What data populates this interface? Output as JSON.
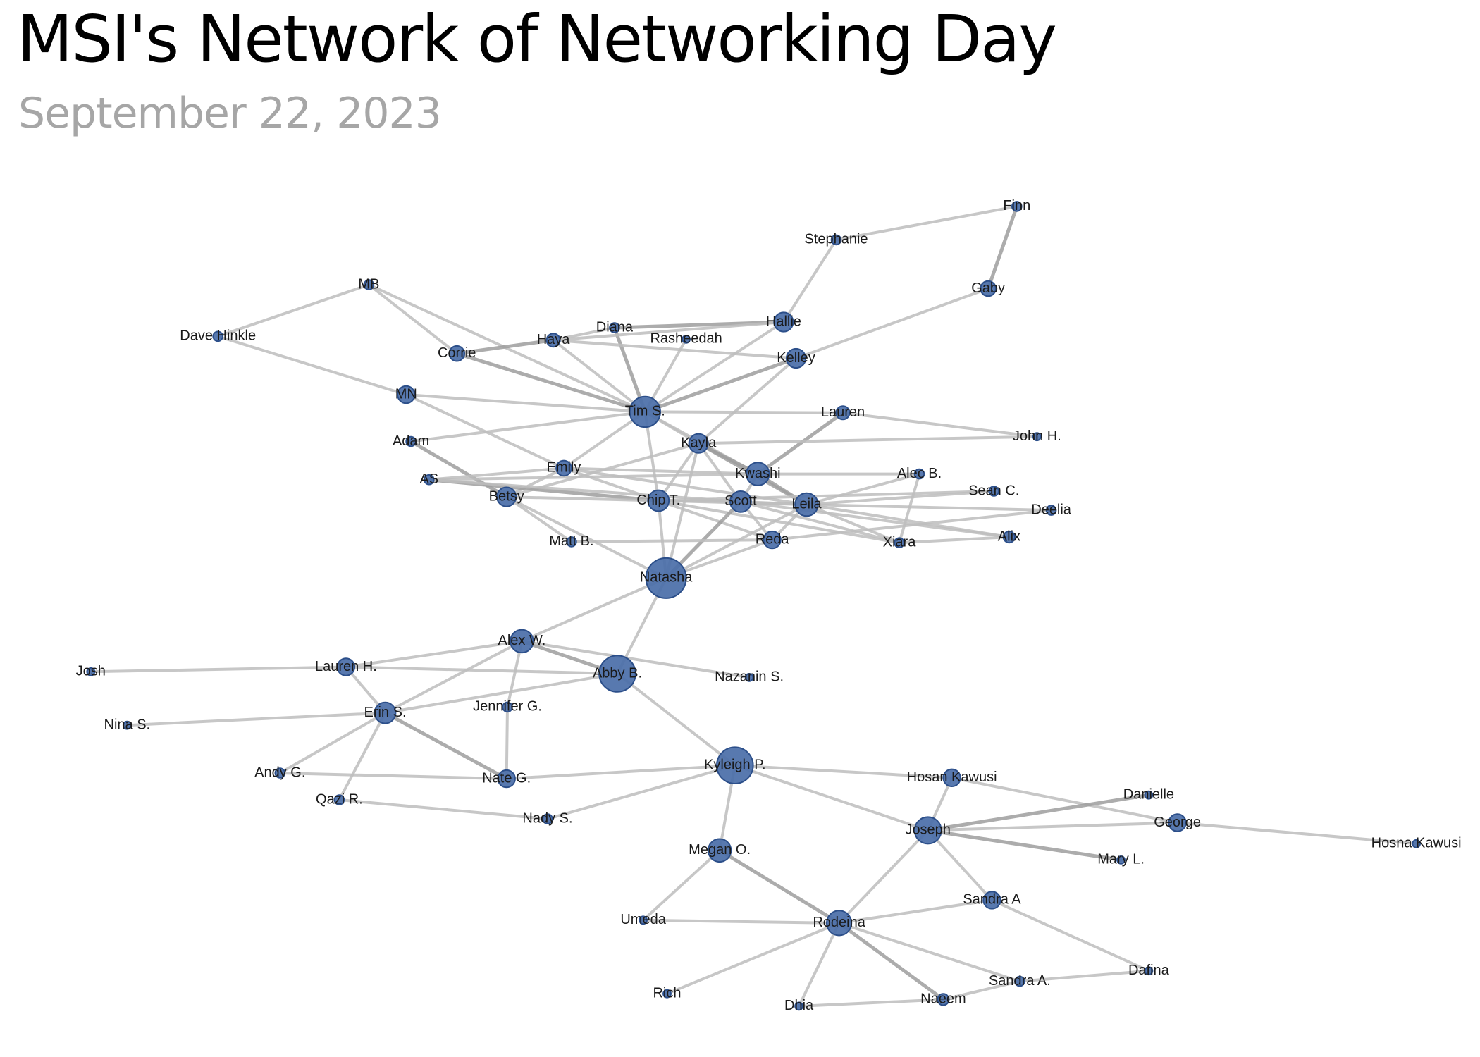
{
  "title": "MSI's Network of Networking Day",
  "subtitle": "September 22, 2023",
  "colors": {
    "node_fill": "#4a6ea8",
    "node_stroke": "#2c4f8a",
    "edge": "#bdbdbd",
    "edge_strong": "#9e9e9e",
    "title": "#000000",
    "subtitle": "#a6a6a6"
  },
  "nodes": [
    "Finn",
    "Stephanie",
    "Gaby",
    "MB",
    "Dave Hinkle",
    "Diana",
    "Hallie",
    "Haya",
    "Rasheedah",
    "Corrie",
    "Kelley",
    "MN",
    "Tim S.",
    "Lauren",
    "Adam",
    "John H.",
    "Kayla",
    "Emily",
    "Kwashi",
    "Alec B.",
    "AS",
    "Sean C.",
    "Betsy",
    "Chip T.",
    "Scott",
    "Leila",
    "Deelia",
    "Matt B.",
    "Reda",
    "Xiara",
    "Alix",
    "Natasha",
    "Alex W.",
    "Josh",
    "Lauren H.",
    "Abby B.",
    "Nazanin S.",
    "Jennifer G.",
    "Erin S.",
    "Nina S.",
    "Kyleigh P.",
    "Andy G.",
    "Nate G.",
    "Hosan Kawusi",
    "Qazi R.",
    "Danielle",
    "Nady S.",
    "George",
    "Joseph",
    "Megan O.",
    "Hosna Kawusi",
    "Mary L.",
    "Sandra A",
    "Umeda",
    "Rodeina",
    "Dafina",
    "Sandra A.",
    "Rich",
    "Naeem",
    "Dhia"
  ]
}
